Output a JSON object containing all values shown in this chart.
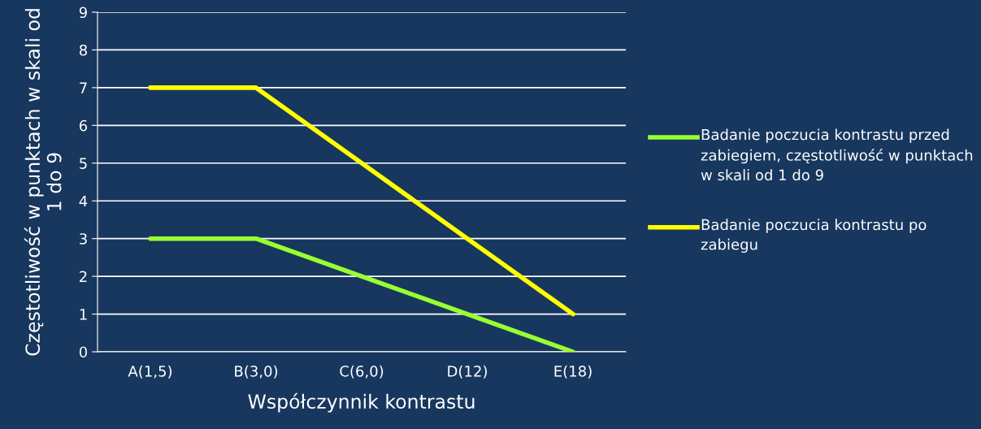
{
  "chart_data": {
    "type": "line",
    "xlabel": "Współczynnik kontrastu",
    "ylabel": "Częstotliwość w punktach w skali od 1 do 9",
    "categories": [
      "A(1,5)",
      "B(3,0)",
      "C(6,0)",
      "D(12)",
      "E(18)"
    ],
    "series": [
      {
        "name": "Badanie poczucia kontrastu przed zabiegiem, częstotliwość w punktach w skali od 1 do 9",
        "color": "#99ff33",
        "values": [
          3,
          3,
          2,
          1,
          0
        ]
      },
      {
        "name": "Badanie poczucia kontrastu po zabiegu",
        "color": "#ffff00",
        "values": [
          7,
          7,
          5,
          3,
          1
        ]
      }
    ],
    "ylim": [
      0,
      9
    ],
    "yticks": [
      0,
      1,
      2,
      3,
      4,
      5,
      6,
      7,
      8,
      9
    ],
    "grid": "y",
    "legend": "right",
    "marker": "none",
    "line_style": "solid"
  }
}
